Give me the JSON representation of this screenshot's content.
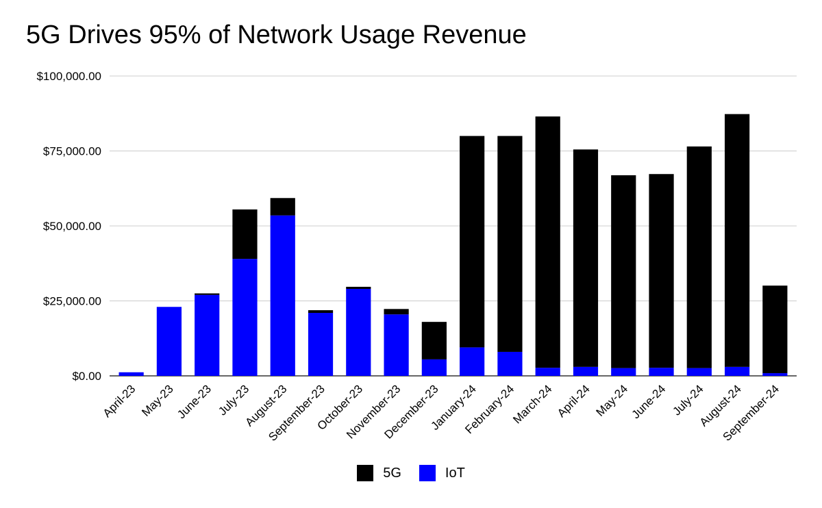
{
  "chart_data": {
    "type": "bar",
    "stacked": true,
    "title": "5G Drives 95% of Network Usage Revenue",
    "categories": [
      "April-23",
      "May-23",
      "June-23",
      "July-23",
      "August-23",
      "September-23",
      "October-23",
      "November-23",
      "December-23",
      "January-24",
      "February-24",
      "March-24",
      "April-24",
      "May-24",
      "June-24",
      "July-24",
      "August-24",
      "September-24"
    ],
    "series": [
      {
        "name": "IoT",
        "color": "#0000ff",
        "values": [
          1200,
          23000,
          27000,
          39000,
          53500,
          21000,
          29000,
          20500,
          5500,
          9500,
          8000,
          2700,
          3000,
          2600,
          2700,
          2600,
          3000,
          900
        ]
      },
      {
        "name": "5G",
        "color": "#000000",
        "values": [
          0,
          0,
          500,
          16500,
          5800,
          900,
          700,
          1800,
          12500,
          70500,
          72000,
          83800,
          72500,
          64300,
          64600,
          73900,
          84300,
          29200
        ]
      }
    ],
    "y_ticks": [
      "$0.00",
      "$25,000.00",
      "$50,000.00",
      "$75,000.00",
      "$100,000.00"
    ],
    "ylim": [
      0,
      100000
    ],
    "grid": true,
    "legend_position": "bottom"
  }
}
